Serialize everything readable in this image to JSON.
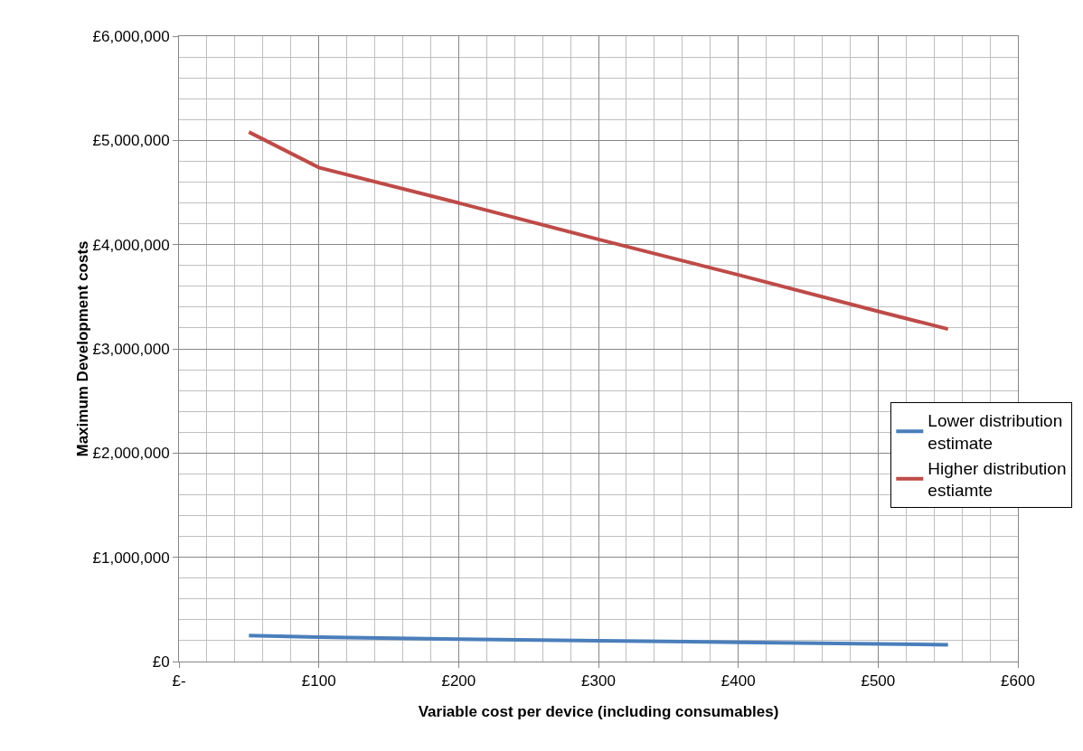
{
  "chart_data": {
    "type": "line",
    "xlabel": "Variable cost per device (including consumables)",
    "ylabel": "Maximum Development costs",
    "series": [
      {
        "name": "Lower distribution estimate",
        "color": "#4a7ebb",
        "x": [
          50,
          100,
          200,
          300,
          400,
          500,
          550
        ],
        "values": [
          250000,
          235000,
          215000,
          200000,
          185000,
          170000,
          160000
        ]
      },
      {
        "name": "Higher distribution estiamte",
        "color": "#be4b48",
        "x": [
          50,
          100,
          200,
          300,
          400,
          500,
          550
        ],
        "values": [
          5080000,
          4740000,
          4400000,
          4050000,
          3710000,
          3360000,
          3190000
        ]
      }
    ],
    "xlim": [
      0,
      600
    ],
    "xticks": [
      {
        "value": 0,
        "label": "£-"
      },
      {
        "value": 100,
        "label": "£100"
      },
      {
        "value": 200,
        "label": "£200"
      },
      {
        "value": 300,
        "label": "£300"
      },
      {
        "value": 400,
        "label": "£400"
      },
      {
        "value": 500,
        "label": "£500"
      },
      {
        "value": 600,
        "label": "£600"
      }
    ],
    "ylim": [
      0,
      6000000
    ],
    "yticks": [
      {
        "value": 0,
        "label": "£0"
      },
      {
        "value": 1000000,
        "label": "£1,000,000"
      },
      {
        "value": 2000000,
        "label": "£2,000,000"
      },
      {
        "value": 3000000,
        "label": "£3,000,000"
      },
      {
        "value": 4000000,
        "label": "£4,000,000"
      },
      {
        "value": 5000000,
        "label": "£5,000,000"
      },
      {
        "value": 6000000,
        "label": "£6,000,000"
      }
    ],
    "grid": true,
    "legend": "right",
    "marker": "none",
    "line_style": "solid"
  }
}
